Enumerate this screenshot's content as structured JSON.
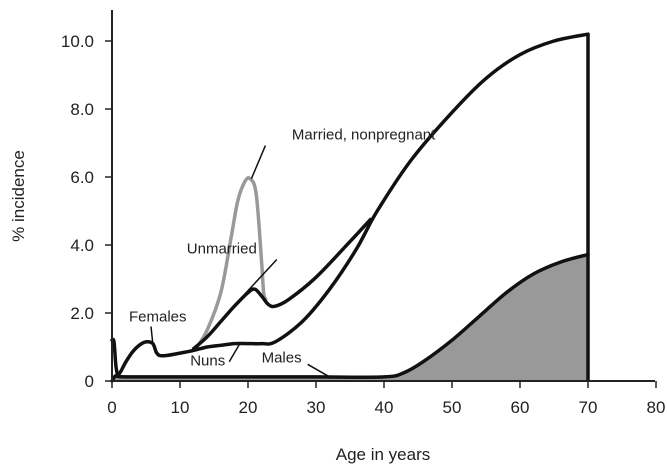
{
  "chart_data": {
    "type": "line",
    "title": "",
    "xlabel": "Age in years",
    "ylabel": "% incidence",
    "xlim": [
      0,
      80
    ],
    "ylim": [
      0,
      10.8
    ],
    "x_ticks": [
      0,
      10,
      20,
      30,
      40,
      50,
      60,
      70,
      80
    ],
    "x_tick_labels": [
      "0",
      "10",
      "20",
      "30",
      "40",
      "50",
      "60",
      "70",
      "80"
    ],
    "y_ticks": [
      0,
      2,
      4,
      6,
      8,
      10
    ],
    "y_tick_labels": [
      "0",
      "2.0",
      "4.0",
      "6.0",
      "8.0",
      "10.0"
    ],
    "grid": false,
    "legend": "none",
    "series": [
      {
        "name": "Married, nonpregnant",
        "color": "#999999",
        "x": [
          12.5,
          14,
          16,
          17.5,
          18.5,
          19.5,
          20.3,
          21.2,
          22,
          22.3,
          22.6
        ],
        "y": [
          1.0,
          1.5,
          2.6,
          4.2,
          5.3,
          5.85,
          5.95,
          5.5,
          3.5,
          2.6,
          2.4
        ]
      },
      {
        "name": "Unmarried",
        "color": "#111111",
        "x": [
          12,
          14,
          16,
          18,
          20,
          21,
          22,
          23,
          24,
          26,
          30,
          35,
          38
        ],
        "y": [
          0.95,
          1.3,
          1.75,
          2.2,
          2.6,
          2.7,
          2.5,
          2.25,
          2.2,
          2.4,
          3.05,
          4.1,
          4.75
        ]
      },
      {
        "name": "Females",
        "color": "#111111",
        "x": [
          0,
          0.3,
          0.6,
          1,
          2,
          3,
          4,
          5,
          6,
          6.5,
          7,
          8,
          10,
          12,
          14,
          16
        ],
        "y": [
          1.2,
          1.15,
          0.4,
          0.2,
          0.55,
          0.85,
          1.05,
          1.15,
          1.1,
          0.85,
          0.75,
          0.75,
          0.82,
          0.9,
          1.0,
          1.05
        ]
      },
      {
        "name": "Nuns",
        "color": "#111111",
        "x": [
          16,
          18,
          20,
          22,
          24,
          28,
          32,
          36,
          39,
          44,
          50,
          55,
          60,
          65,
          70
        ],
        "y": [
          1.05,
          1.1,
          1.1,
          1.1,
          1.15,
          1.75,
          2.7,
          3.9,
          5.0,
          6.5,
          7.9,
          8.9,
          9.6,
          10.0,
          10.2
        ]
      },
      {
        "name": "Males",
        "color": "#111111",
        "fill": "#999999",
        "x": [
          0,
          0.5,
          1,
          3,
          10,
          20,
          30,
          40,
          43,
          46,
          50,
          54,
          58,
          62,
          66,
          70
        ],
        "y": [
          0,
          0.15,
          0.13,
          0.12,
          0.12,
          0.12,
          0.12,
          0.12,
          0.25,
          0.6,
          1.2,
          1.9,
          2.6,
          3.15,
          3.5,
          3.72
        ]
      }
    ],
    "annotations": [
      {
        "text": "Married, nonpregnant",
        "x": 37,
        "y": 7.1,
        "points_to": [
          20.5,
          5.95
        ]
      },
      {
        "text": "Unmarried",
        "x": 11,
        "y": 3.75,
        "points_to": [
          19.5,
          2.55
        ]
      },
      {
        "text": "Females",
        "x": 2.5,
        "y": 1.75,
        "points_to": [
          6,
          1.1
        ]
      },
      {
        "text": "Nuns",
        "x": 11.5,
        "y": 0.45,
        "points_to": [
          18.8,
          1.1
        ]
      },
      {
        "text": "Males",
        "x": 22,
        "y": 0.55,
        "points_to": [
          32,
          0.12
        ]
      }
    ]
  }
}
